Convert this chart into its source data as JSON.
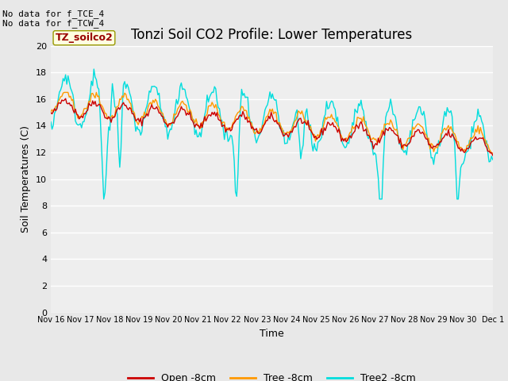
{
  "title": "Tonzi Soil CO2 Profile: Lower Temperatures",
  "ylabel": "Soil Temperatures (C)",
  "xlabel": "Time",
  "annotation_text": "No data for f_TCE_4\nNo data for f_TCW_4",
  "legend_box_label": "TZ_soilco2",
  "ylim": [
    0,
    20
  ],
  "yticks": [
    0,
    2,
    4,
    6,
    8,
    10,
    12,
    14,
    16,
    18,
    20
  ],
  "xtick_labels": [
    "Nov 16",
    "Nov 17",
    "Nov 18",
    "Nov 19",
    "Nov 20",
    "Nov 21",
    "Nov 22",
    "Nov 23",
    "Nov 24",
    "Nov 25",
    "Nov 26",
    "Nov 27",
    "Nov 28",
    "Nov 29",
    "Nov 30",
    "Dec 1"
  ],
  "series_open_color": "#cc0000",
  "series_tree_color": "#ff9900",
  "series_tree2_color": "#00dddd",
  "series_open_label": "Open -8cm",
  "series_tree_label": "Tree -8cm",
  "series_tree2_label": "Tree2 -8cm",
  "linewidth": 1.0,
  "bg_color": "#e8e8e8",
  "title_fontsize": 12,
  "axis_label_fontsize": 9,
  "tick_fontsize": 8,
  "legend_fontsize": 9,
  "annotation_fontsize": 8
}
